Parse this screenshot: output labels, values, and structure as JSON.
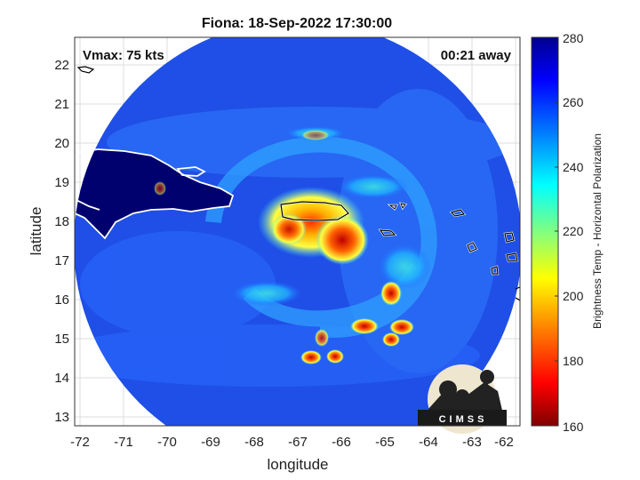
{
  "title": "Fiona: 18-Sep-2022 17:30:00",
  "vmax_label": "Vmax: 75 kts",
  "away_label": "00:21 away",
  "xlabel": "longitude",
  "ylabel": "latitude",
  "x_ticks": [
    "-72",
    "-71",
    "-70",
    "-69",
    "-68",
    "-67",
    "-66",
    "-65",
    "-64",
    "-63",
    "-62"
  ],
  "y_ticks": [
    "13",
    "14",
    "15",
    "16",
    "17",
    "18",
    "19",
    "20",
    "21",
    "22"
  ],
  "colorbar": {
    "label": "Brightness Temp - Horizontal Polarization",
    "ticks": [
      "160",
      "180",
      "200",
      "220",
      "240",
      "260",
      "280"
    ],
    "range": [
      160,
      280
    ],
    "colormap": [
      "#7f0000",
      "#ff0000",
      "#ff8000",
      "#ffff00",
      "#80ff80",
      "#00ffff",
      "#0080ff",
      "#0000ff",
      "#00008f"
    ]
  },
  "logo": {
    "text": "CIMSS"
  },
  "map": {
    "xlim": [
      -72.2,
      -61.6
    ],
    "ylim": [
      12.8,
      22.5
    ],
    "storm_center": [
      -66.3,
      17.8
    ],
    "swath_center": [
      -66.7,
      17.3
    ],
    "background_temp_range": [
      250,
      270
    ],
    "land_temp": 278,
    "eyewall_temp_range": [
      205,
      230
    ],
    "colors": {
      "land": "#00006f",
      "background": "#1f4fe6",
      "coastline_light": "#ffffff",
      "coastline_dark": "#000000"
    }
  }
}
